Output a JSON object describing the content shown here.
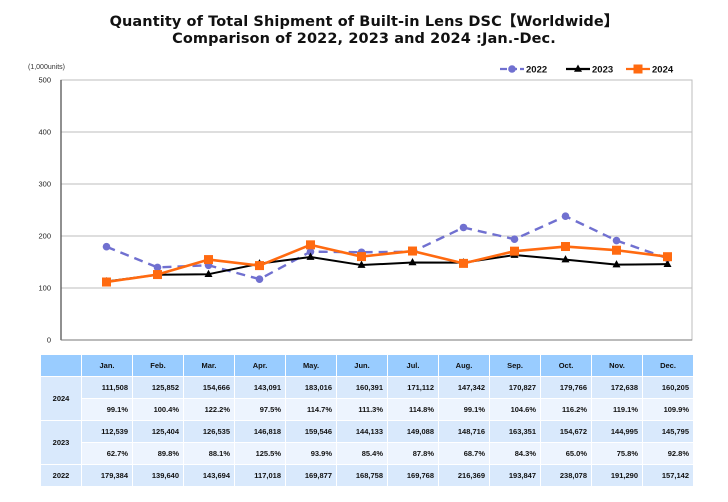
{
  "chart_data": {
    "type": "line",
    "title": "Quantity of Total Shipment of Built-in Lens DSC【Worldwide】",
    "subtitle": "Comparison of 2022, 2023 and 2024 :Jan.-Dec.",
    "unit_label": "(1,000units)",
    "xlabel": "",
    "ylabel": "",
    "ylim": [
      0,
      500
    ],
    "yticks": [
      0,
      100,
      200,
      300,
      400,
      500
    ],
    "grid": true,
    "legend_position": "top-right",
    "categories": [
      "Jan.",
      "Feb.",
      "Mar.",
      "Apr.",
      "May.",
      "Jun.",
      "Jul.",
      "Aug.",
      "Sep.",
      "Oct.",
      "Nov.",
      "Dec."
    ],
    "series": [
      {
        "name": "2022",
        "color": "#7070d0",
        "style": "dashed",
        "marker": "circle",
        "values": [
          179.384,
          139.64,
          143.694,
          117.018,
          169.877,
          168.758,
          169.768,
          216.369,
          193.847,
          238.078,
          191.29,
          157.142
        ]
      },
      {
        "name": "2023",
        "color": "#000000",
        "style": "solid",
        "marker": "triangle",
        "values": [
          112.539,
          125.404,
          126.535,
          146.818,
          159.546,
          144.133,
          149.088,
          148.716,
          163.351,
          154.672,
          144.995,
          145.795
        ]
      },
      {
        "name": "2024",
        "color": "#ff6a10",
        "style": "solid",
        "marker": "square",
        "values": [
          111.508,
          125.852,
          154.666,
          143.091,
          183.016,
          160.391,
          171.112,
          147.342,
          170.827,
          179.766,
          172.638,
          160.205
        ]
      }
    ]
  },
  "table": {
    "headers": [
      "",
      "Jan.",
      "Feb.",
      "Mar.",
      "Apr.",
      "May.",
      "Jun.",
      "Jul.",
      "Aug.",
      "Sep.",
      "Oct.",
      "Nov.",
      "Dec."
    ],
    "rows": [
      {
        "year": "2024",
        "quantities": [
          "111,508",
          "125,852",
          "154,666",
          "143,091",
          "183,016",
          "160,391",
          "171,112",
          "147,342",
          "170,827",
          "179,766",
          "172,638",
          "160,205"
        ],
        "ratios": [
          "99.1%",
          "100.4%",
          "122.2%",
          "97.5%",
          "114.7%",
          "111.3%",
          "114.8%",
          "99.1%",
          "104.6%",
          "116.2%",
          "119.1%",
          "109.9%"
        ]
      },
      {
        "year": "2023",
        "quantities": [
          "112,539",
          "125,404",
          "126,535",
          "146,818",
          "159,546",
          "144,133",
          "149,088",
          "148,716",
          "163,351",
          "154,672",
          "144,995",
          "145,795"
        ],
        "ratios": [
          "62.7%",
          "89.8%",
          "88.1%",
          "125.5%",
          "93.9%",
          "85.4%",
          "87.8%",
          "68.7%",
          "84.3%",
          "65.0%",
          "75.8%",
          "92.8%"
        ]
      },
      {
        "year": "2022",
        "quantities": [
          "179,384",
          "139,640",
          "143,694",
          "117,018",
          "169,877",
          "168,758",
          "169,768",
          "216,369",
          "193,847",
          "238,078",
          "191,290",
          "157,142"
        ]
      }
    ]
  }
}
